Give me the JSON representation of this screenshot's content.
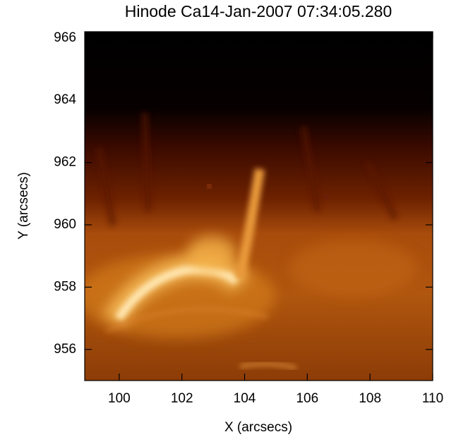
{
  "chart_data": {
    "type": "image",
    "title": "Hinode Ca14-Jan-2007 07:34:05.280",
    "x_label": "X (arcsecs)",
    "y_label": "Y (arcsecs)",
    "xlim": [
      98.9,
      110
    ],
    "xticks": [
      100,
      102,
      104,
      106,
      108,
      110
    ],
    "ylim": [
      955.0,
      966.2
    ],
    "yticks": [
      956,
      958,
      960,
      962,
      964,
      966
    ]
  }
}
